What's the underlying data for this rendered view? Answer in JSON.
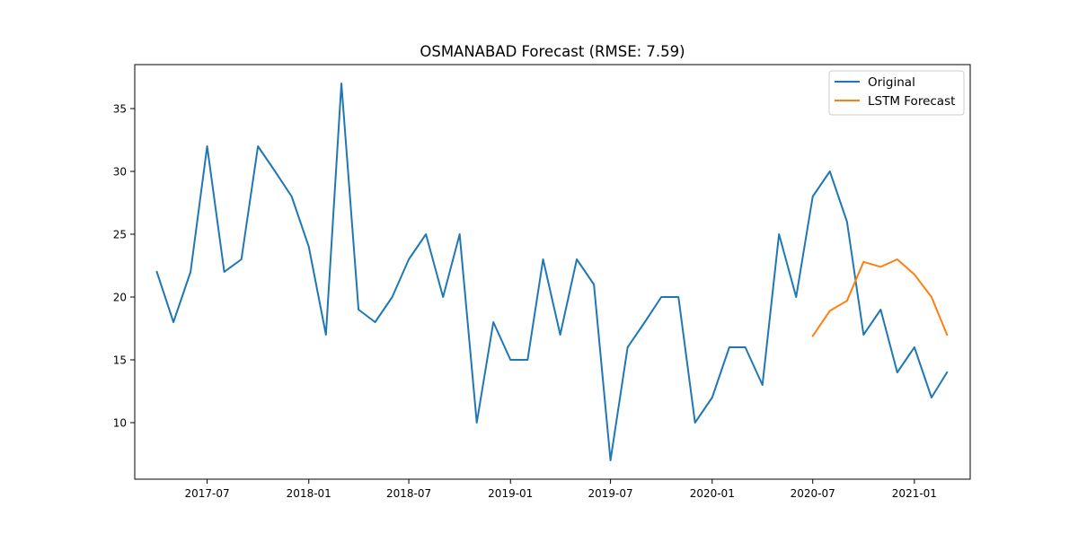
{
  "chart_data": {
    "type": "line",
    "title": "OSMANABAD Forecast (RMSE: 7.59)",
    "xlabel": "",
    "ylabel": "",
    "x_ticks": [
      "2017-07",
      "2018-01",
      "2018-07",
      "2019-01",
      "2019-07",
      "2020-01",
      "2020-07",
      "2021-01"
    ],
    "y_ticks": [
      10,
      15,
      20,
      25,
      30,
      35
    ],
    "xlim": [
      "2017-02-20",
      "2021-04-12"
    ],
    "ylim": [
      5.5,
      38.5
    ],
    "grid": false,
    "legend_position": "top-right",
    "series": [
      {
        "name": "Original",
        "color": "#1f77b4",
        "x": [
          "2017-04",
          "2017-05",
          "2017-06",
          "2017-07",
          "2017-08",
          "2017-09",
          "2017-10",
          "2017-11",
          "2017-12",
          "2018-01",
          "2018-02",
          "2018-03",
          "2018-04",
          "2018-05",
          "2018-06",
          "2018-07",
          "2018-08",
          "2018-09",
          "2018-10",
          "2018-11",
          "2018-12",
          "2019-01",
          "2019-02",
          "2019-03",
          "2019-04",
          "2019-05",
          "2019-06",
          "2019-07",
          "2019-08",
          "2019-09",
          "2019-10",
          "2019-11",
          "2019-12",
          "2020-01",
          "2020-02",
          "2020-03",
          "2020-04",
          "2020-05",
          "2020-06",
          "2020-07",
          "2020-08",
          "2020-09",
          "2020-10",
          "2020-11",
          "2020-12",
          "2021-01",
          "2021-02",
          "2021-03"
        ],
        "y": [
          22,
          18,
          22,
          32,
          22,
          23,
          32,
          30,
          28,
          24,
          17,
          37,
          19,
          18,
          20,
          23,
          25,
          20,
          25,
          10,
          18,
          15,
          15,
          23,
          17,
          23,
          21,
          7,
          16,
          18,
          20,
          20,
          10,
          12,
          16,
          16,
          13,
          25,
          20,
          28,
          30,
          26,
          17,
          19,
          14,
          16,
          12,
          14
        ]
      },
      {
        "name": "LSTM Forecast",
        "color": "#ff7f0e",
        "x": [
          "2020-07",
          "2020-08",
          "2020-09",
          "2020-10",
          "2020-11",
          "2020-12",
          "2021-01",
          "2021-02",
          "2021-03"
        ],
        "y": [
          16.9,
          18.9,
          19.7,
          22.8,
          22.4,
          23.0,
          21.8,
          20.0,
          17.0
        ]
      }
    ]
  }
}
